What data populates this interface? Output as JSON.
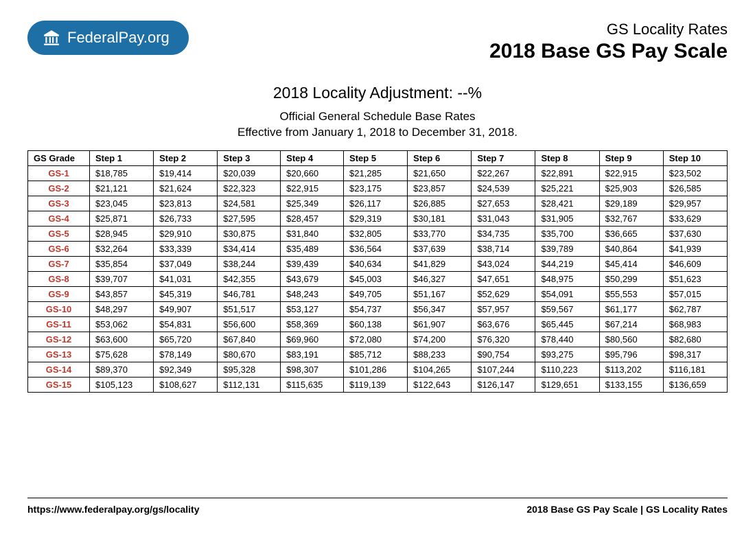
{
  "logo": {
    "bold": "Federal",
    "light": "Pay.org"
  },
  "header": {
    "subtitle": "GS Locality Rates",
    "title": "2018 Base GS Pay Scale"
  },
  "center": {
    "adjustment": "2018 Locality Adjustment: --%",
    "line1": "Official General Schedule Base Rates",
    "line2": "Effective from January 1, 2018 to December 31, 2018."
  },
  "table": {
    "type": "table",
    "columns": [
      "GS Grade",
      "Step 1",
      "Step 2",
      "Step 3",
      "Step 4",
      "Step 5",
      "Step 6",
      "Step 7",
      "Step 8",
      "Step 9",
      "Step 10"
    ],
    "grade_color": "#c0392b",
    "border_color": "#000000",
    "header_fontweight": 700,
    "cell_fontsize": 13,
    "rows": [
      [
        "GS-1",
        "$18,785",
        "$19,414",
        "$20,039",
        "$20,660",
        "$21,285",
        "$21,650",
        "$22,267",
        "$22,891",
        "$22,915",
        "$23,502"
      ],
      [
        "GS-2",
        "$21,121",
        "$21,624",
        "$22,323",
        "$22,915",
        "$23,175",
        "$23,857",
        "$24,539",
        "$25,221",
        "$25,903",
        "$26,585"
      ],
      [
        "GS-3",
        "$23,045",
        "$23,813",
        "$24,581",
        "$25,349",
        "$26,117",
        "$26,885",
        "$27,653",
        "$28,421",
        "$29,189",
        "$29,957"
      ],
      [
        "GS-4",
        "$25,871",
        "$26,733",
        "$27,595",
        "$28,457",
        "$29,319",
        "$30,181",
        "$31,043",
        "$31,905",
        "$32,767",
        "$33,629"
      ],
      [
        "GS-5",
        "$28,945",
        "$29,910",
        "$30,875",
        "$31,840",
        "$32,805",
        "$33,770",
        "$34,735",
        "$35,700",
        "$36,665",
        "$37,630"
      ],
      [
        "GS-6",
        "$32,264",
        "$33,339",
        "$34,414",
        "$35,489",
        "$36,564",
        "$37,639",
        "$38,714",
        "$39,789",
        "$40,864",
        "$41,939"
      ],
      [
        "GS-7",
        "$35,854",
        "$37,049",
        "$38,244",
        "$39,439",
        "$40,634",
        "$41,829",
        "$43,024",
        "$44,219",
        "$45,414",
        "$46,609"
      ],
      [
        "GS-8",
        "$39,707",
        "$41,031",
        "$42,355",
        "$43,679",
        "$45,003",
        "$46,327",
        "$47,651",
        "$48,975",
        "$50,299",
        "$51,623"
      ],
      [
        "GS-9",
        "$43,857",
        "$45,319",
        "$46,781",
        "$48,243",
        "$49,705",
        "$51,167",
        "$52,629",
        "$54,091",
        "$55,553",
        "$57,015"
      ],
      [
        "GS-10",
        "$48,297",
        "$49,907",
        "$51,517",
        "$53,127",
        "$54,737",
        "$56,347",
        "$57,957",
        "$59,567",
        "$61,177",
        "$62,787"
      ],
      [
        "GS-11",
        "$53,062",
        "$54,831",
        "$56,600",
        "$58,369",
        "$60,138",
        "$61,907",
        "$63,676",
        "$65,445",
        "$67,214",
        "$68,983"
      ],
      [
        "GS-12",
        "$63,600",
        "$65,720",
        "$67,840",
        "$69,960",
        "$72,080",
        "$74,200",
        "$76,320",
        "$78,440",
        "$80,560",
        "$82,680"
      ],
      [
        "GS-13",
        "$75,628",
        "$78,149",
        "$80,670",
        "$83,191",
        "$85,712",
        "$88,233",
        "$90,754",
        "$93,275",
        "$95,796",
        "$98,317"
      ],
      [
        "GS-14",
        "$89,370",
        "$92,349",
        "$95,328",
        "$98,307",
        "$101,286",
        "$104,265",
        "$107,244",
        "$110,223",
        "$113,202",
        "$116,181"
      ],
      [
        "GS-15",
        "$105,123",
        "$108,627",
        "$112,131",
        "$115,635",
        "$119,139",
        "$122,643",
        "$126,147",
        "$129,651",
        "$133,155",
        "$136,659"
      ]
    ]
  },
  "footer": {
    "left": "https://www.federalpay.org/gs/locality",
    "right": "2018 Base GS Pay Scale | GS Locality Rates"
  },
  "colors": {
    "brand_bg": "#1d6fa5",
    "brand_fg": "#ffffff",
    "text": "#000000",
    "grade": "#c0392b"
  }
}
